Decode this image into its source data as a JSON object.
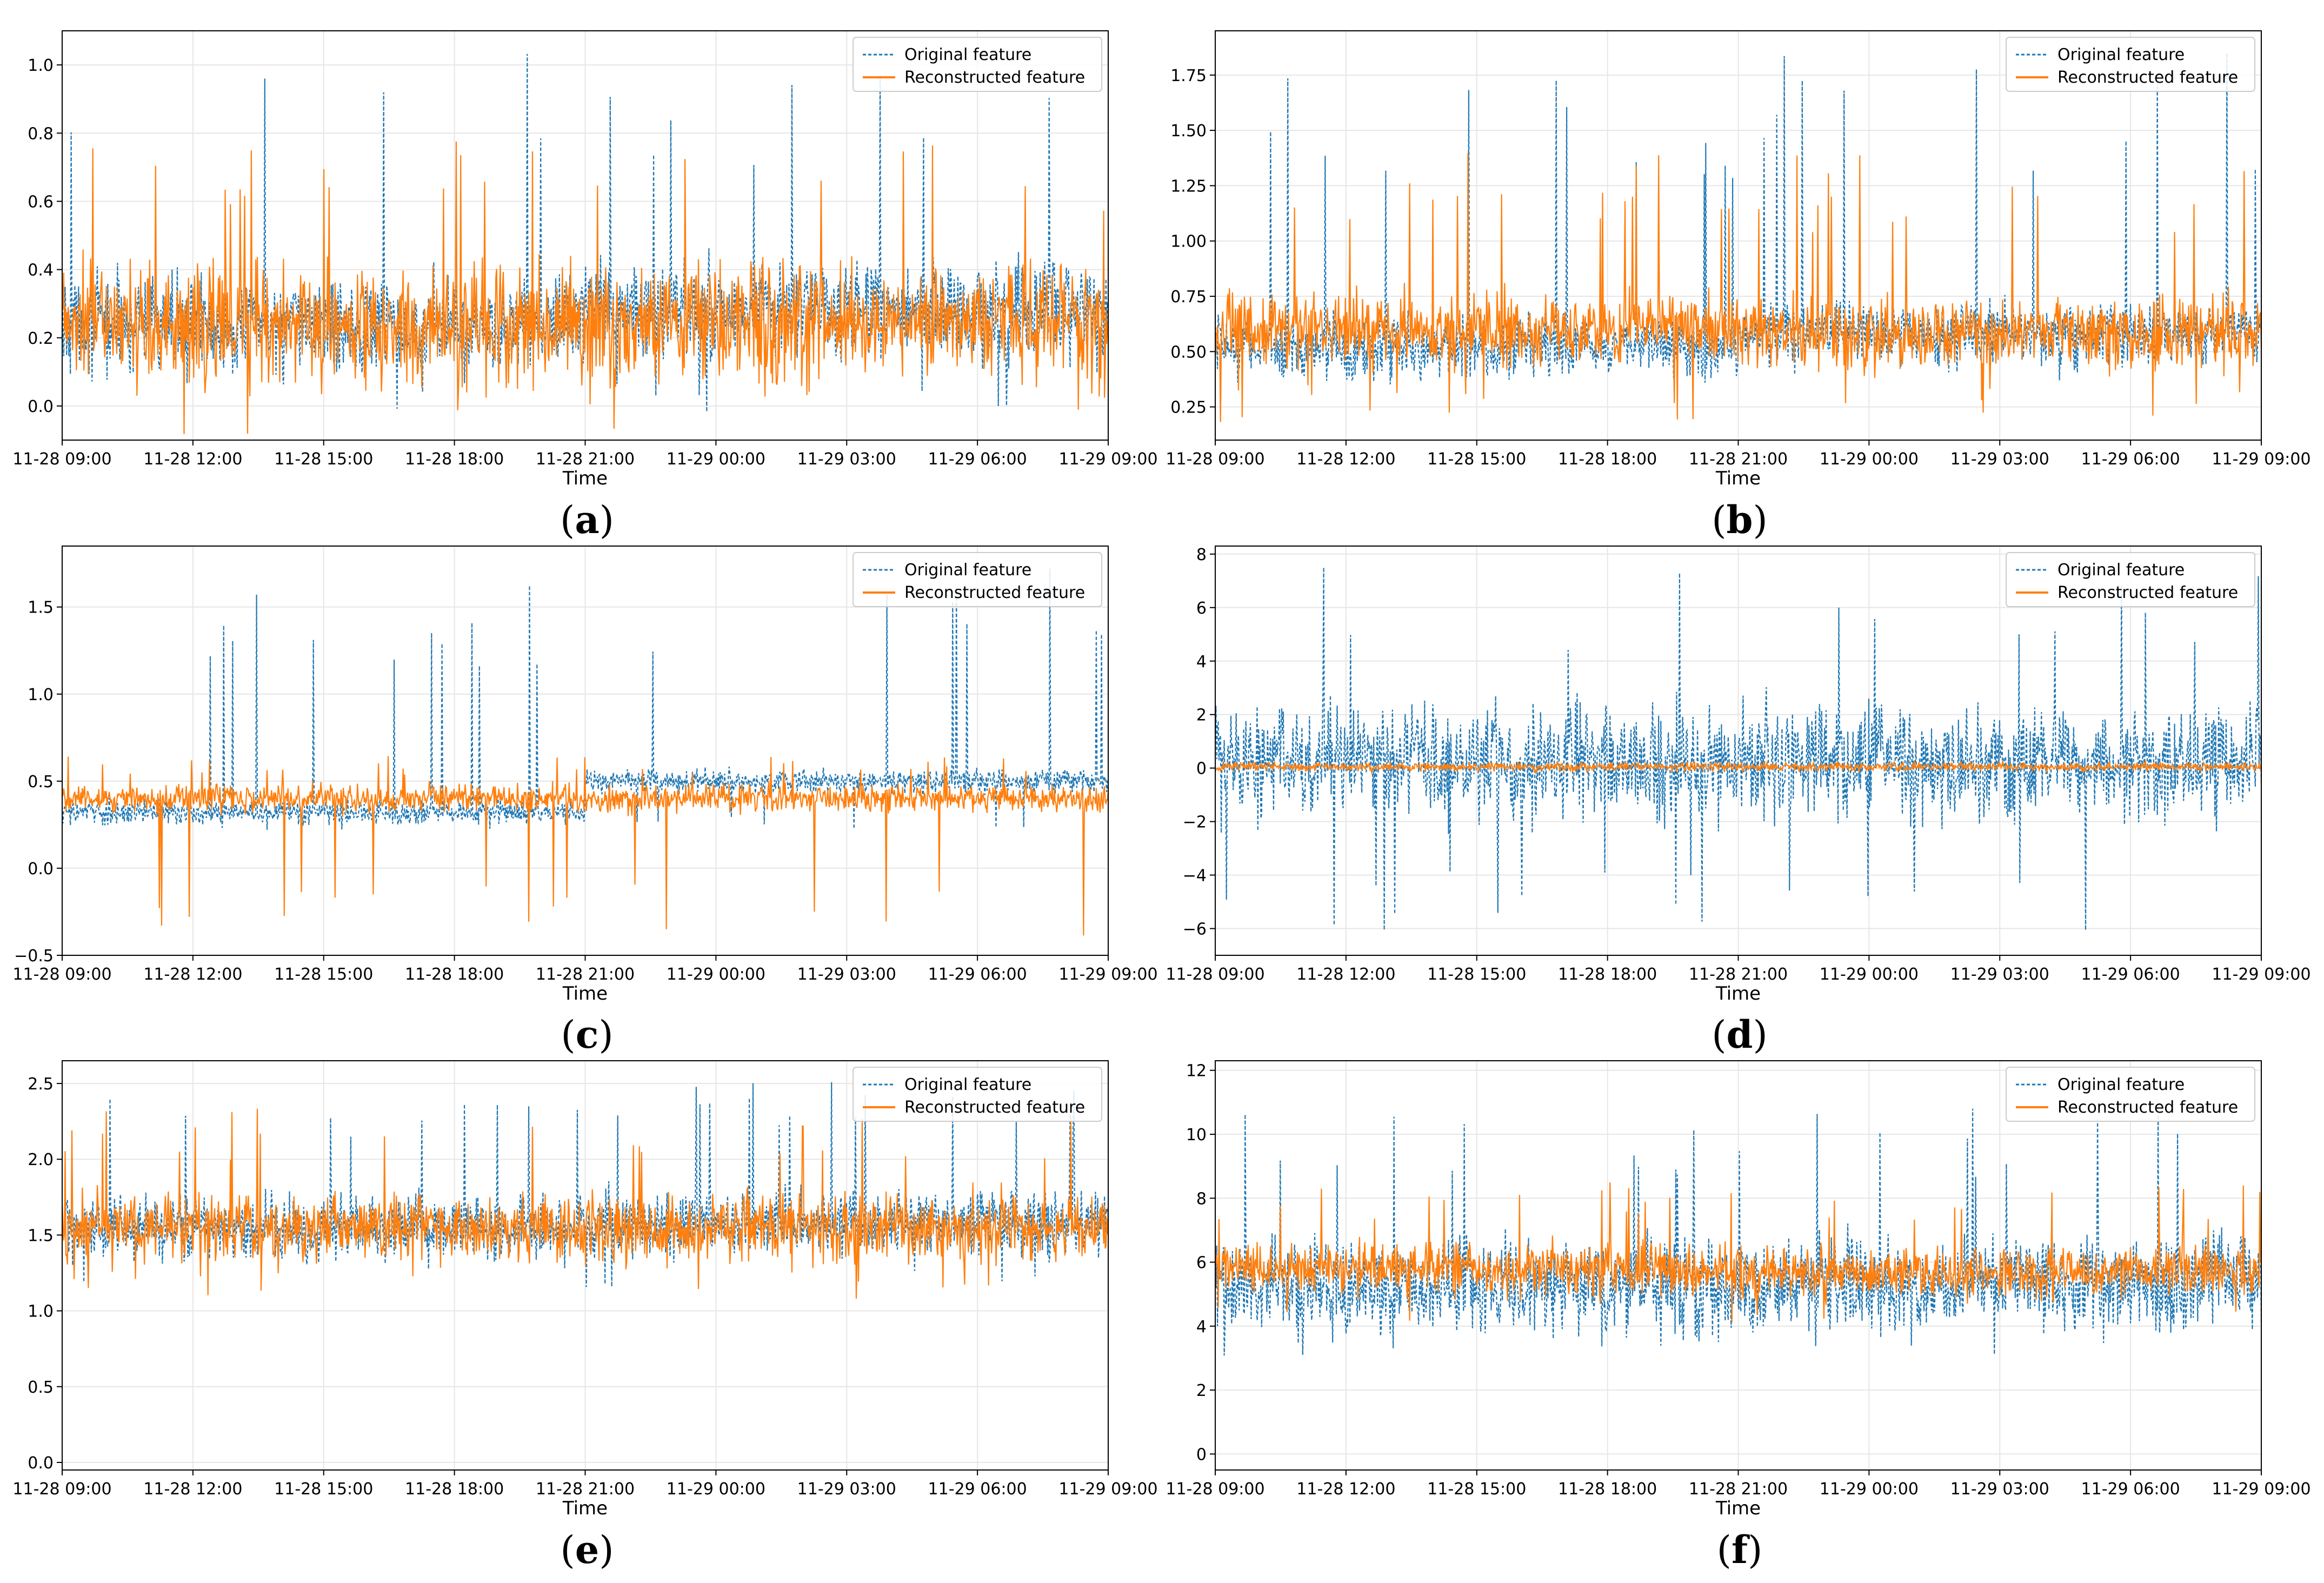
{
  "colors": {
    "original": "#1f77b4",
    "reconstructed": "#ff7f0e",
    "axis": "#000000",
    "grid": "#e6e6e6"
  },
  "legend_labels": {
    "original": "Original feature",
    "reconstructed": "Reconstructed feature"
  },
  "chart_data": [
    {
      "panel": "a",
      "caption_letter": "a",
      "type": "line",
      "xlabel": "Time",
      "x_ticks": [
        "11-28 09:00",
        "11-28 12:00",
        "11-28 15:00",
        "11-28 18:00",
        "11-28 21:00",
        "11-29 00:00",
        "11-29 03:00",
        "11-29 06:00",
        "11-29 09:00"
      ],
      "y_ticks": [
        "0.0",
        "0.2",
        "0.4",
        "0.6",
        "0.8",
        "1.0"
      ],
      "ylim": [
        -0.1,
        1.1
      ],
      "series": [
        {
          "name": "Original feature",
          "style": "dashed",
          "base": 0.24,
          "base2": 0.28,
          "spread": 0.1,
          "spike_max": 1.04,
          "spike_min": -0.05
        },
        {
          "name": "Reconstructed feature",
          "style": "solid",
          "base": 0.24,
          "base2": 0.25,
          "spread": 0.13,
          "spike_max": 0.78,
          "spike_min": -0.1
        }
      ],
      "legend": "top-right"
    },
    {
      "panel": "b",
      "caption_letter": "b",
      "type": "line",
      "xlabel": "Time",
      "x_ticks": [
        "11-28 09:00",
        "11-28 12:00",
        "11-28 15:00",
        "11-28 18:00",
        "11-28 21:00",
        "11-29 00:00",
        "11-29 03:00",
        "11-29 06:00",
        "11-29 09:00"
      ],
      "y_ticks": [
        "0.25",
        "0.50",
        "0.75",
        "1.00",
        "1.25",
        "1.50",
        "1.75"
      ],
      "ylim": [
        0.1,
        1.95
      ],
      "series": [
        {
          "name": "Original feature",
          "style": "dashed",
          "base": 0.52,
          "base2": 0.58,
          "spread": 0.1,
          "spike_max": 1.85,
          "spike_min": 0.35
        },
        {
          "name": "Reconstructed feature",
          "style": "solid",
          "base": 0.6,
          "base2": 0.58,
          "spread": 0.12,
          "spike_max": 1.4,
          "spike_min": 0.18
        }
      ],
      "legend": "top-right"
    },
    {
      "panel": "c",
      "caption_letter": "c",
      "type": "line",
      "xlabel": "Time",
      "x_ticks": [
        "11-28 09:00",
        "11-28 12:00",
        "11-28 15:00",
        "11-28 18:00",
        "11-28 21:00",
        "11-29 00:00",
        "11-29 03:00",
        "11-29 06:00",
        "11-29 09:00"
      ],
      "y_ticks": [
        "−0.5",
        "0.0",
        "0.5",
        "1.0",
        "1.5"
      ],
      "ylim": [
        -0.5,
        1.85
      ],
      "series": [
        {
          "name": "Original feature",
          "style": "dashed",
          "base": 0.32,
          "base2": 0.5,
          "spread": 0.05,
          "spike_max": 1.73,
          "spike_min": 0.22
        },
        {
          "name": "Reconstructed feature",
          "style": "solid",
          "base": 0.4,
          "base2": 0.4,
          "spread": 0.06,
          "spike_max": 0.65,
          "spike_min": -0.4
        }
      ],
      "legend": "top-right"
    },
    {
      "panel": "d",
      "caption_letter": "d",
      "type": "line",
      "xlabel": "Time",
      "x_ticks": [
        "11-28 09:00",
        "11-28 12:00",
        "11-28 15:00",
        "11-28 18:00",
        "11-28 21:00",
        "11-29 00:00",
        "11-29 03:00",
        "11-29 06:00",
        "11-29 09:00"
      ],
      "y_ticks": [
        "−6",
        "−4",
        "−2",
        "0",
        "2",
        "4",
        "6",
        "8"
      ],
      "ylim": [
        -7,
        8.3
      ],
      "series": [
        {
          "name": "Original feature",
          "style": "dashed",
          "base": 0.2,
          "base2": 0.2,
          "spread": 1.6,
          "spike_max": 7.6,
          "spike_min": -6.1
        },
        {
          "name": "Reconstructed feature",
          "style": "solid",
          "base": 0.05,
          "base2": 0.05,
          "spread": 0.12,
          "spike_max": 0.3,
          "spike_min": -0.2
        }
      ],
      "legend": "top-right"
    },
    {
      "panel": "e",
      "caption_letter": "e",
      "type": "line",
      "xlabel": "Time",
      "x_ticks": [
        "11-28 09:00",
        "11-28 12:00",
        "11-28 15:00",
        "11-28 18:00",
        "11-28 21:00",
        "11-29 00:00",
        "11-29 03:00",
        "11-29 06:00",
        "11-29 09:00"
      ],
      "y_ticks": [
        "0.0",
        "0.5",
        "1.0",
        "1.5",
        "2.0",
        "2.5"
      ],
      "ylim": [
        -0.05,
        2.65
      ],
      "series": [
        {
          "name": "Original feature",
          "style": "dashed",
          "base": 1.55,
          "base2": 1.58,
          "spread": 0.15,
          "spike_max": 2.52,
          "spike_min": 1.15
        },
        {
          "name": "Reconstructed feature",
          "style": "solid",
          "base": 1.55,
          "base2": 1.55,
          "spread": 0.17,
          "spike_max": 2.35,
          "spike_min": 1.05
        }
      ],
      "legend": "top-right"
    },
    {
      "panel": "f",
      "caption_letter": "f",
      "type": "line",
      "xlabel": "Time",
      "x_ticks": [
        "11-28 09:00",
        "11-28 12:00",
        "11-28 15:00",
        "11-28 18:00",
        "11-28 21:00",
        "11-29 00:00",
        "11-29 03:00",
        "11-29 06:00",
        "11-29 09:00"
      ],
      "y_ticks": [
        "0",
        "2",
        "4",
        "6",
        "8",
        "10",
        "12"
      ],
      "ylim": [
        -0.5,
        12.3
      ],
      "series": [
        {
          "name": "Original feature",
          "style": "dashed",
          "base": 5.2,
          "base2": 5.3,
          "spread": 1.1,
          "spike_max": 11.2,
          "spike_min": 2.9
        },
        {
          "name": "Reconstructed feature",
          "style": "solid",
          "base": 5.8,
          "base2": 5.7,
          "spread": 0.6,
          "spike_max": 8.5,
          "spike_min": 4.0
        }
      ],
      "legend": "top-right"
    }
  ]
}
